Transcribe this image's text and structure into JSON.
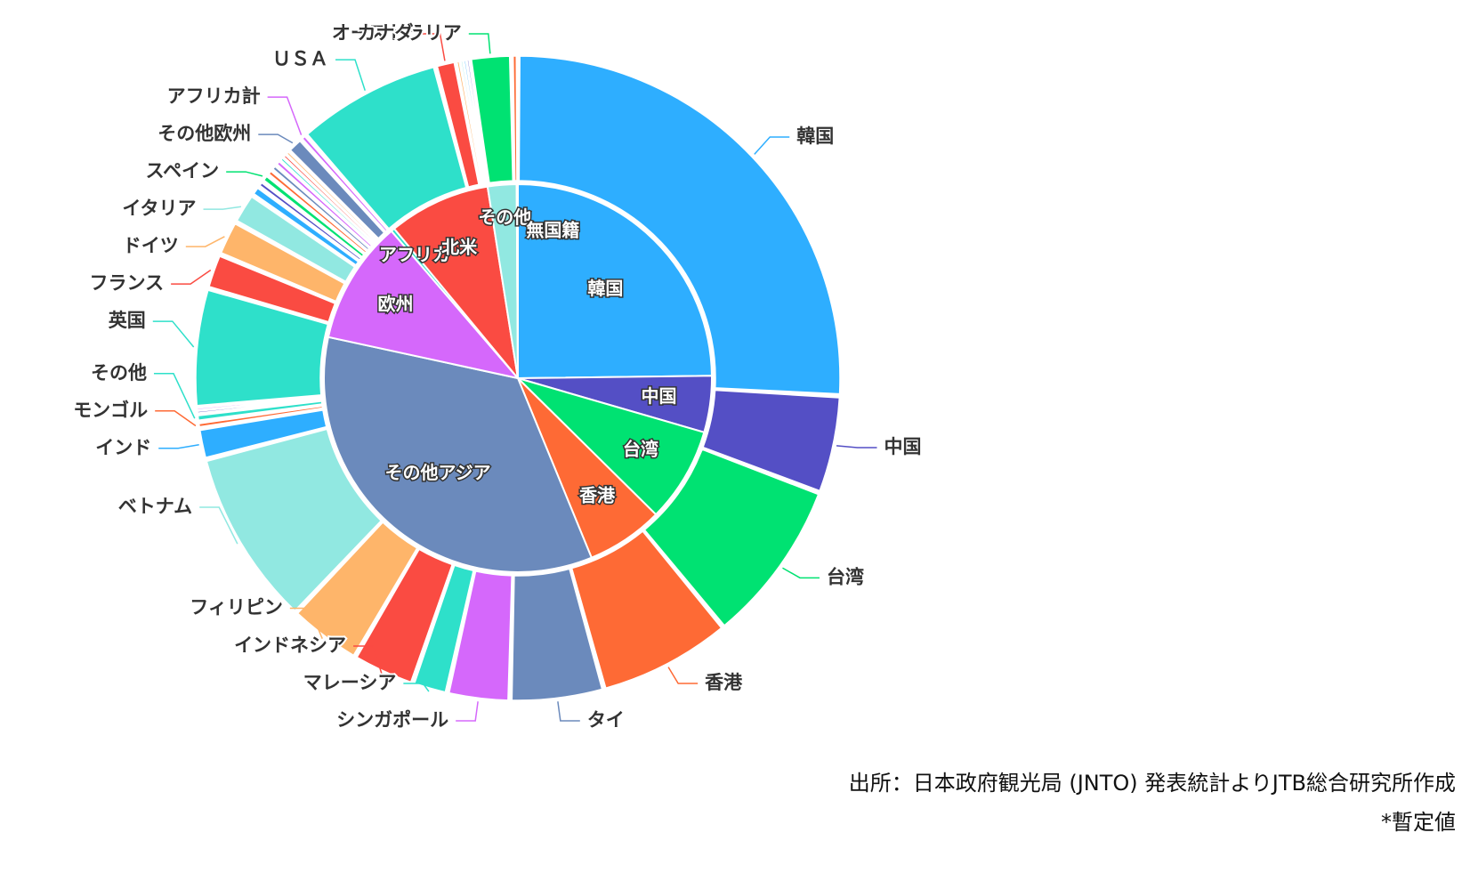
{
  "chart_data": {
    "type": "pie",
    "subtype": "sunburst",
    "start_angle_deg": 0,
    "series": [
      {
        "ring": "inner",
        "slices": [
          {
            "label": "韓国",
            "value": 24.8,
            "color": "#2EAEFF"
          },
          {
            "label": "中国",
            "value": 4.7,
            "color": "#544FC5"
          },
          {
            "label": "台湾",
            "value": 7.9,
            "color": "#00E272"
          },
          {
            "label": "香港",
            "value": 6.4,
            "color": "#FE6A35"
          },
          {
            "label": "その他アジア",
            "value": 34.6,
            "color": "#6B8ABC"
          },
          {
            "label": "欧州",
            "value": 10.3,
            "color": "#D568FB"
          },
          {
            "label": "アフリカ",
            "value": 0.3,
            "color": "#2EE0CA"
          },
          {
            "label": "北米",
            "value": 8.5,
            "color": "#FA4B42"
          },
          {
            "label": "その他",
            "value": 2.4,
            "color": "#91E8E1"
          },
          {
            "label": "無国籍",
            "value": 0.1,
            "color": "#FEB56A"
          }
        ]
      },
      {
        "ring": "outer",
        "slices": [
          {
            "label": "韓国",
            "value": 24.8,
            "color": "#2EAEFF"
          },
          {
            "label": "中国",
            "value": 4.7,
            "color": "#544FC5"
          },
          {
            "label": "台湾",
            "value": 7.9,
            "color": "#00E272"
          },
          {
            "label": "香港",
            "value": 6.4,
            "color": "#FE6A35"
          },
          {
            "label": "タイ",
            "value": 4.5,
            "color": "#6B8ABC"
          },
          {
            "label": "シンガポール",
            "value": 3.0,
            "color": "#D568FB"
          },
          {
            "label": "マレーシア",
            "value": 1.7,
            "color": "#2EE0CA"
          },
          {
            "label": "インドネシア",
            "value": 3.0,
            "color": "#FA4B42"
          },
          {
            "label": "フィリピン",
            "value": 3.5,
            "color": "#FEB56A"
          },
          {
            "label": "ベトナム",
            "value": 8.5,
            "color": "#91E8E1"
          },
          {
            "label": "インド",
            "value": 1.5,
            "color": "#2EAEFF"
          },
          {
            "label": "モンゴル",
            "value": 0.3,
            "color": "#FE6A35"
          },
          {
            "label": "その他",
            "value": 0.4,
            "color": "#2EE0CA"
          },
          {
            "label": "",
            "value": 0.15,
            "color": "#544FC5"
          },
          {
            "label": "",
            "value": 0.15,
            "color": "#D568FB"
          },
          {
            "label": "英国",
            "value": 5.7,
            "color": "#2EE0CA"
          },
          {
            "label": "フランス",
            "value": 1.7,
            "color": "#FA4B42"
          },
          {
            "label": "ドイツ",
            "value": 1.7,
            "color": "#FEB56A"
          },
          {
            "label": "イタリア",
            "value": 1.5,
            "color": "#91E8E1"
          },
          {
            "label": "",
            "value": 0.5,
            "color": "#2EAEFF"
          },
          {
            "label": "",
            "value": 0.3,
            "color": "#544FC5"
          },
          {
            "label": "スペイン",
            "value": 0.4,
            "color": "#00E272"
          },
          {
            "label": "",
            "value": 0.3,
            "color": "#FE6A35"
          },
          {
            "label": "",
            "value": 0.3,
            "color": "#6B8ABC"
          },
          {
            "label": "",
            "value": 0.3,
            "color": "#D568FB"
          },
          {
            "label": "",
            "value": 0.2,
            "color": "#2EE0CA"
          },
          {
            "label": "",
            "value": 0.2,
            "color": "#FA4B42"
          },
          {
            "label": "",
            "value": 0.2,
            "color": "#FEB56A"
          },
          {
            "label": "その他欧州",
            "value": 0.8,
            "color": "#6B8ABC"
          },
          {
            "label": "アフリカ計",
            "value": 0.3,
            "color": "#D568FB"
          },
          {
            "label": "ＵＳＡ",
            "value": 7.0,
            "color": "#2EE0CA"
          },
          {
            "label": "カナダ",
            "value": 1.0,
            "color": "#FA4B42"
          },
          {
            "label": "",
            "value": 0.2,
            "color": "#FEB56A"
          },
          {
            "label": "",
            "value": 0.15,
            "color": "#91E8E1"
          },
          {
            "label": "",
            "value": 0.15,
            "color": "#2EAEFF"
          },
          {
            "label": "",
            "value": 0.15,
            "color": "#544FC5"
          },
          {
            "label": "オーストラリア",
            "value": 2.0,
            "color": "#00E272"
          },
          {
            "label": "",
            "value": 0.3,
            "color": "#FE6A35"
          }
        ]
      }
    ]
  },
  "footer": {
    "source": "出所：日本政府観光局 (JNTO) 発表統計よりJTB総合研究所作成",
    "note": "*暫定値"
  }
}
